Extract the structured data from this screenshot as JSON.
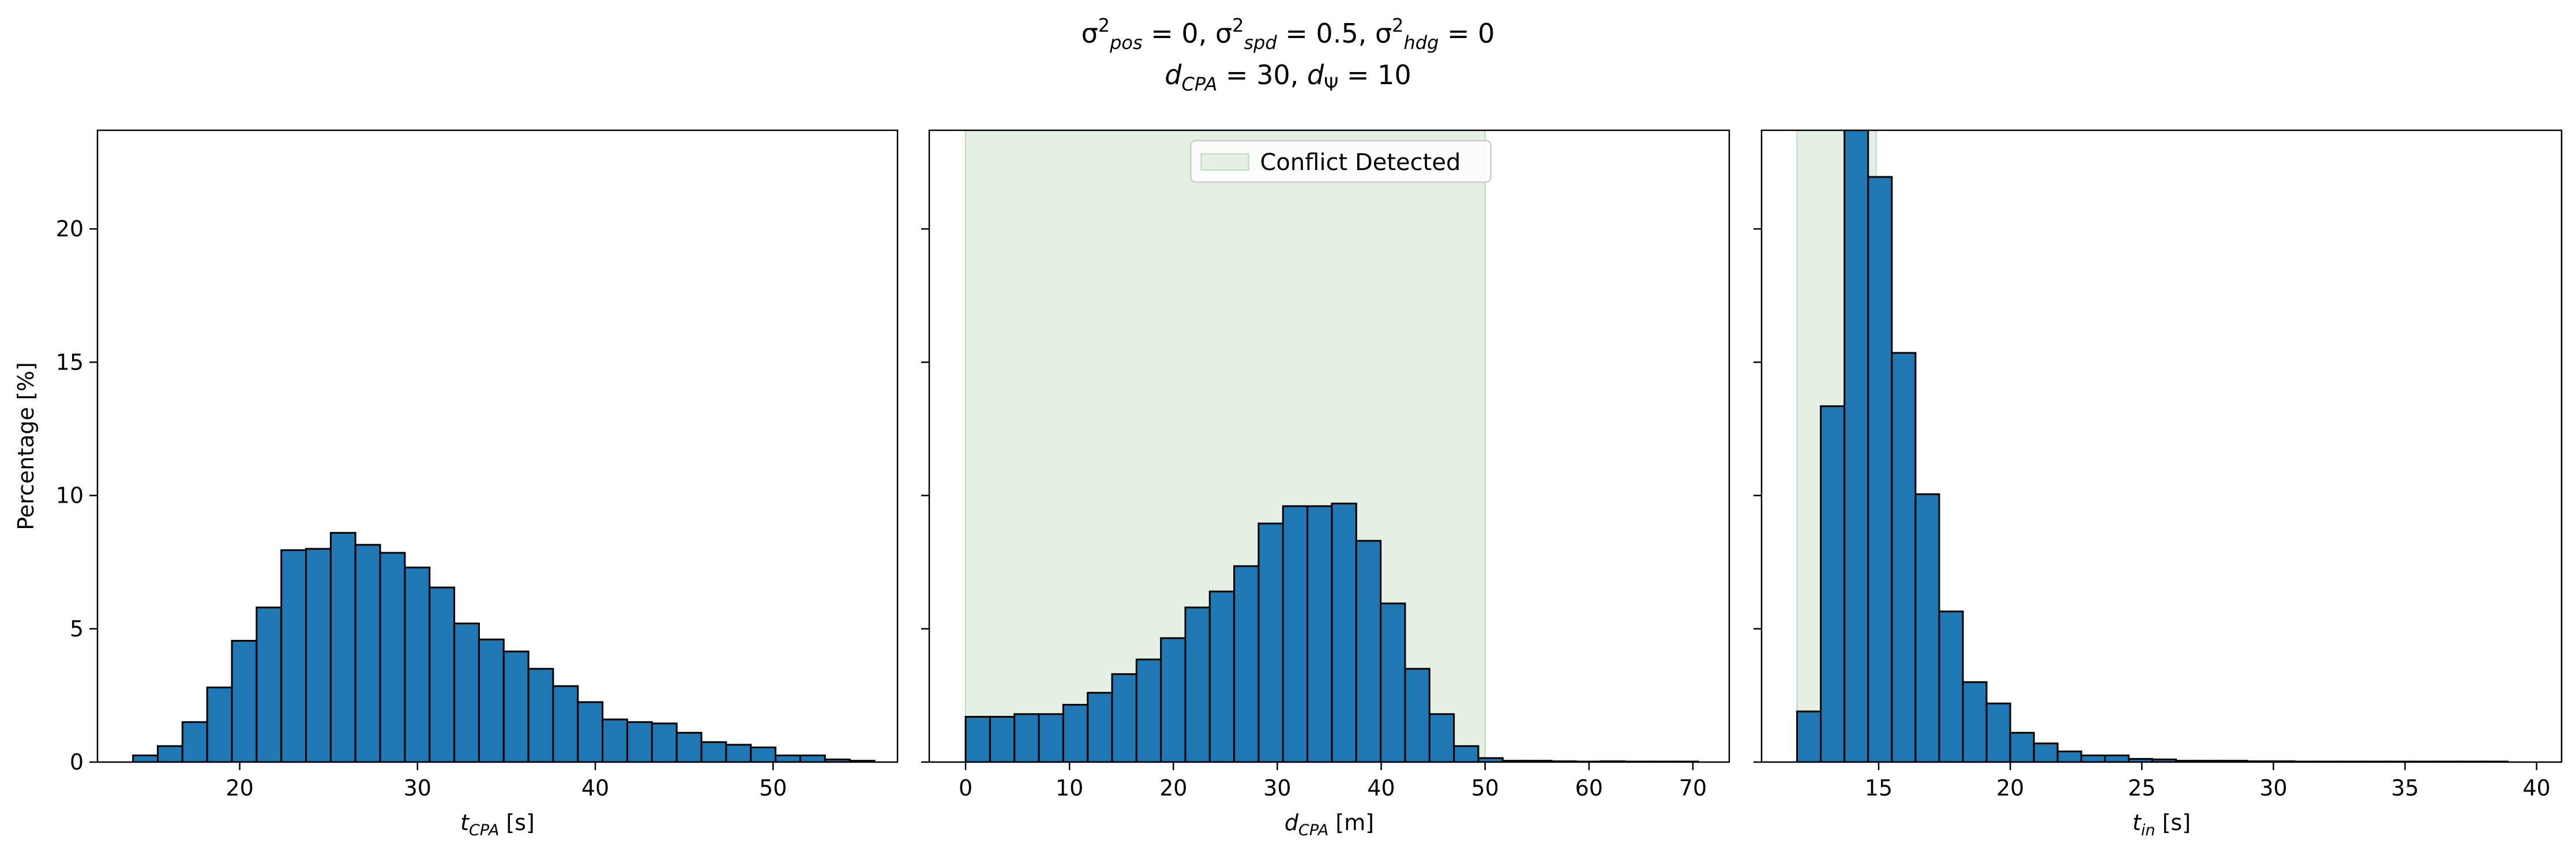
{
  "figure": {
    "title_lines": [
      [
        {
          "t": "σ"
        },
        {
          "t": "2",
          "sup": true
        },
        {
          "t": "pos",
          "sub": true,
          "it": true
        },
        {
          "t": " = 0, "
        },
        {
          "t": "σ"
        },
        {
          "t": "2",
          "sup": true
        },
        {
          "t": "spd",
          "sub": true,
          "it": true
        },
        {
          "t": " = 0.5, "
        },
        {
          "t": "σ"
        },
        {
          "t": "2",
          "sup": true
        },
        {
          "t": "hdg",
          "sub": true,
          "it": true
        },
        {
          "t": " = 0"
        }
      ],
      [
        {
          "t": "d",
          "it": true
        },
        {
          "t": "CPA",
          "sub": true,
          "it": true
        },
        {
          "t": " = 30, "
        },
        {
          "t": "d",
          "it": true
        },
        {
          "t": "Ψ",
          "sub": true
        },
        {
          "t": " = 10"
        }
      ]
    ],
    "colors": {
      "bar_fill": "#1f77b4",
      "bar_edge": "#000000",
      "conflict_fill": "#e5f1e4",
      "conflict_edge": "#b9dcb7"
    }
  },
  "chart_data": [
    {
      "type": "bar",
      "name": "tcpa-histogram",
      "xlabel_parts": [
        {
          "t": "t",
          "it": true
        },
        {
          "t": "CPA",
          "sub": true,
          "it": true
        },
        {
          "t": " [s]"
        }
      ],
      "ylabel": "Percentage [%]",
      "xlim": [
        12,
        57
      ],
      "ylim": [
        0,
        23.7
      ],
      "xticks": [
        20,
        30,
        40,
        50
      ],
      "yticks": [
        0,
        5,
        10,
        15,
        20
      ],
      "show_ytick_labels": true,
      "bin_start": 14.0,
      "bin_width": 1.39,
      "values": [
        0.25,
        0.6,
        1.5,
        2.8,
        4.55,
        5.8,
        7.95,
        8.0,
        8.6,
        8.15,
        7.85,
        7.3,
        6.55,
        5.2,
        4.6,
        4.15,
        3.5,
        2.85,
        2.25,
        1.6,
        1.5,
        1.45,
        1.1,
        0.75,
        0.65,
        0.55,
        0.25,
        0.25,
        0.1,
        0.05
      ]
    },
    {
      "type": "bar",
      "name": "dcpa-histogram",
      "xlabel_parts": [
        {
          "t": "d",
          "it": true
        },
        {
          "t": "CPA",
          "sub": true,
          "it": true
        },
        {
          "t": " [m]"
        }
      ],
      "ylabel": "",
      "xlim": [
        -3.5,
        73.5
      ],
      "ylim": [
        0,
        23.7
      ],
      "xticks": [
        0,
        10,
        20,
        30,
        40,
        50,
        60,
        70
      ],
      "yticks": [
        0,
        5,
        10,
        15,
        20
      ],
      "show_ytick_labels": false,
      "bin_start": 0.0,
      "bin_width": 2.35,
      "values": [
        1.7,
        1.7,
        1.8,
        1.8,
        2.15,
        2.6,
        3.3,
        3.85,
        4.65,
        5.8,
        6.4,
        7.35,
        8.95,
        9.6,
        9.6,
        9.7,
        8.3,
        5.95,
        3.5,
        1.8,
        0.6,
        0.15,
        0.05,
        0.05,
        0.03,
        0.02,
        0.03,
        0.02,
        0.02,
        0.02
      ],
      "conflict_region": [
        0,
        50
      ],
      "legend": {
        "label": "Conflict Detected",
        "position": "upper center"
      }
    },
    {
      "type": "bar",
      "name": "tin-histogram",
      "xlabel_parts": [
        {
          "t": "t",
          "it": true
        },
        {
          "t": "in",
          "sub": true,
          "it": true
        },
        {
          "t": " [s]"
        }
      ],
      "ylabel": "",
      "xlim": [
        10.55,
        40.95
      ],
      "ylim": [
        0,
        23.7
      ],
      "xticks": [
        15,
        20,
        25,
        30,
        35,
        40
      ],
      "yticks": [
        0,
        5,
        10,
        15,
        20
      ],
      "show_ytick_labels": false,
      "bin_start": 11.9,
      "bin_width": 0.9,
      "values": [
        1.9,
        13.35,
        23.9,
        21.95,
        15.35,
        10.05,
        5.65,
        3.0,
        2.2,
        1.1,
        0.7,
        0.4,
        0.25,
        0.25,
        0.12,
        0.1,
        0.05,
        0.05,
        0.05,
        0.03,
        0.03,
        0.02,
        0.02,
        0.02,
        0.02,
        0.02,
        0.02,
        0.02,
        0.02,
        0.02
      ],
      "conflict_region": [
        11.9,
        14.9
      ]
    }
  ]
}
